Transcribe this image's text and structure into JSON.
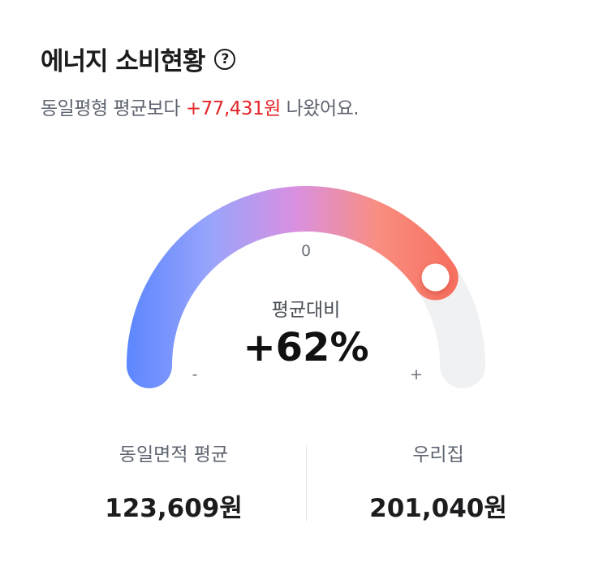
{
  "header": {
    "title": "에너지 소비현황",
    "help_icon": "question-circle-icon",
    "help_glyph": "?"
  },
  "summary": {
    "prefix": "동일평형 평균보다 ",
    "highlight": "+77,431원",
    "suffix": " 나왔어요.",
    "highlight_color": "#e5262a"
  },
  "gauge": {
    "zero_label": "0",
    "minus_label": "-",
    "plus_label": "+",
    "center_label": "평균대비",
    "value_text": "+62%",
    "fill_fraction": 0.81,
    "gradient": [
      "#5b86ff",
      "#98a4fb",
      "#d890e2",
      "#f98e80",
      "#f76d5d"
    ],
    "track_color": "#f0f1f3"
  },
  "stats": [
    {
      "label": "동일면적 평균",
      "value": "123,609원"
    },
    {
      "label": "우리집",
      "value": "201,040원"
    }
  ]
}
